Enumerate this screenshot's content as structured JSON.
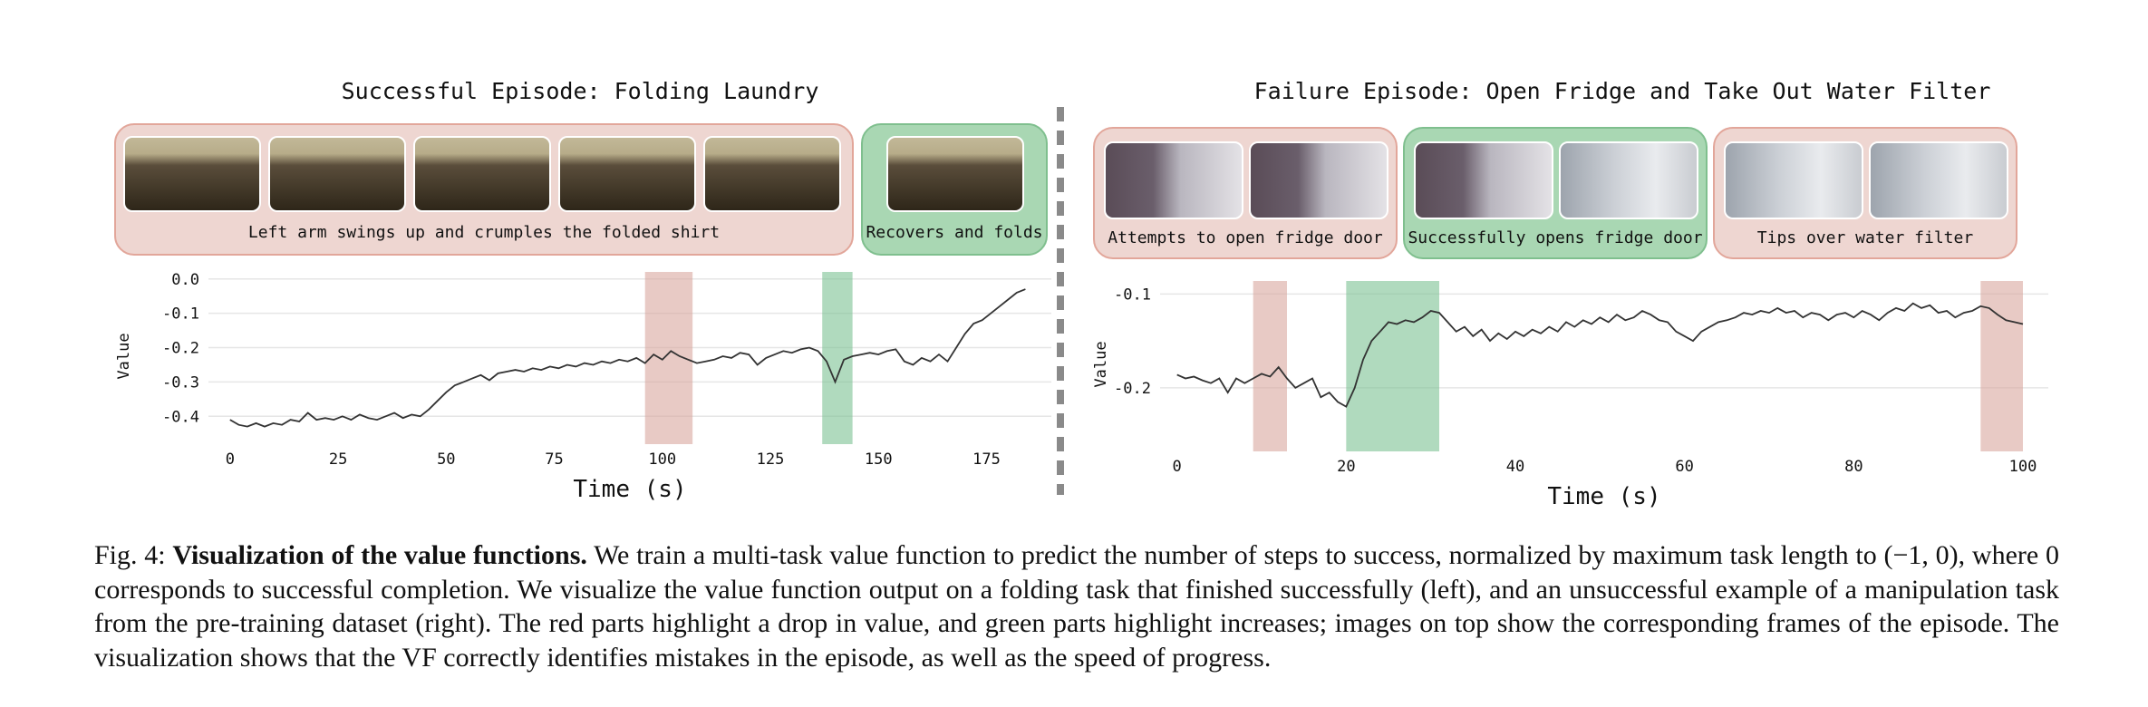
{
  "left_panel": {
    "title": "Successful Episode: Folding Laundry",
    "groups": [
      {
        "caption": "Left arm swings up and crumples the folded shirt",
        "color": "red",
        "frames": 5
      },
      {
        "caption": "Recovers and folds",
        "color": "green",
        "frames": 1
      }
    ]
  },
  "right_panel": {
    "title": "Failure Episode: Open Fridge and Take Out Water Filter",
    "groups": [
      {
        "caption": "Attempts to open fridge door",
        "color": "red",
        "frames": 2
      },
      {
        "caption": "Successfully opens fridge door",
        "color": "green",
        "frames": 2
      },
      {
        "caption": "Tips over water filter",
        "color": "red",
        "frames": 2
      }
    ]
  },
  "colors": {
    "red_band": "#d9a79e",
    "green_band": "#7cc193",
    "line": "#333333"
  },
  "chart_data": [
    {
      "type": "line",
      "xlabel": "Time (s)",
      "ylabel": "Value",
      "xlim": [
        -5,
        190
      ],
      "ylim": [
        -0.46,
        0.01
      ],
      "xticks": [
        0,
        25,
        50,
        75,
        100,
        125,
        150,
        175
      ],
      "yticks": [
        0.0,
        -0.1,
        -0.2,
        -0.3,
        -0.4
      ],
      "ytick_labels": [
        "0.0",
        "-0.1",
        "-0.2",
        "-0.3",
        "-0.4"
      ],
      "grid": "horizontal",
      "bands": [
        {
          "color": "red",
          "x0": 96,
          "x1": 107
        },
        {
          "color": "green",
          "x0": 137,
          "x1": 144
        }
      ],
      "series": [
        {
          "values": [
            [
              0,
              -0.41
            ],
            [
              2,
              -0.425
            ],
            [
              4,
              -0.43
            ],
            [
              6,
              -0.42
            ],
            [
              8,
              -0.43
            ],
            [
              10,
              -0.42
            ],
            [
              12,
              -0.425
            ],
            [
              14,
              -0.41
            ],
            [
              16,
              -0.415
            ],
            [
              18,
              -0.39
            ],
            [
              20,
              -0.41
            ],
            [
              22,
              -0.405
            ],
            [
              24,
              -0.41
            ],
            [
              26,
              -0.4
            ],
            [
              28,
              -0.41
            ],
            [
              30,
              -0.395
            ],
            [
              32,
              -0.405
            ],
            [
              34,
              -0.41
            ],
            [
              36,
              -0.4
            ],
            [
              38,
              -0.39
            ],
            [
              40,
              -0.405
            ],
            [
              42,
              -0.395
            ],
            [
              44,
              -0.4
            ],
            [
              46,
              -0.38
            ],
            [
              48,
              -0.355
            ],
            [
              50,
              -0.33
            ],
            [
              52,
              -0.31
            ],
            [
              54,
              -0.3
            ],
            [
              56,
              -0.29
            ],
            [
              58,
              -0.28
            ],
            [
              60,
              -0.295
            ],
            [
              62,
              -0.275
            ],
            [
              64,
              -0.27
            ],
            [
              66,
              -0.265
            ],
            [
              68,
              -0.27
            ],
            [
              70,
              -0.26
            ],
            [
              72,
              -0.265
            ],
            [
              74,
              -0.255
            ],
            [
              76,
              -0.26
            ],
            [
              78,
              -0.25
            ],
            [
              80,
              -0.255
            ],
            [
              82,
              -0.245
            ],
            [
              84,
              -0.25
            ],
            [
              86,
              -0.24
            ],
            [
              88,
              -0.245
            ],
            [
              90,
              -0.235
            ],
            [
              92,
              -0.24
            ],
            [
              94,
              -0.23
            ],
            [
              96,
              -0.245
            ],
            [
              98,
              -0.22
            ],
            [
              100,
              -0.235
            ],
            [
              102,
              -0.21
            ],
            [
              104,
              -0.225
            ],
            [
              106,
              -0.235
            ],
            [
              108,
              -0.245
            ],
            [
              110,
              -0.24
            ],
            [
              112,
              -0.235
            ],
            [
              114,
              -0.225
            ],
            [
              116,
              -0.23
            ],
            [
              118,
              -0.215
            ],
            [
              120,
              -0.22
            ],
            [
              122,
              -0.25
            ],
            [
              124,
              -0.23
            ],
            [
              126,
              -0.22
            ],
            [
              128,
              -0.21
            ],
            [
              130,
              -0.215
            ],
            [
              132,
              -0.205
            ],
            [
              134,
              -0.2
            ],
            [
              136,
              -0.21
            ],
            [
              138,
              -0.24
            ],
            [
              140,
              -0.3
            ],
            [
              142,
              -0.235
            ],
            [
              144,
              -0.225
            ],
            [
              146,
              -0.22
            ],
            [
              148,
              -0.215
            ],
            [
              150,
              -0.22
            ],
            [
              152,
              -0.21
            ],
            [
              154,
              -0.205
            ],
            [
              156,
              -0.24
            ],
            [
              158,
              -0.25
            ],
            [
              160,
              -0.23
            ],
            [
              162,
              -0.24
            ],
            [
              164,
              -0.22
            ],
            [
              166,
              -0.24
            ],
            [
              168,
              -0.2
            ],
            [
              170,
              -0.16
            ],
            [
              172,
              -0.13
            ],
            [
              174,
              -0.12
            ],
            [
              176,
              -0.1
            ],
            [
              178,
              -0.08
            ],
            [
              180,
              -0.06
            ],
            [
              182,
              -0.04
            ],
            [
              184,
              -0.03
            ]
          ]
        }
      ]
    },
    {
      "type": "line",
      "xlabel": "Time (s)",
      "ylabel": "Value",
      "xlim": [
        -2,
        103
      ],
      "ylim": [
        -0.26,
        -0.09
      ],
      "xticks": [
        0,
        20,
        40,
        60,
        80,
        100
      ],
      "yticks": [
        -0.1,
        -0.2
      ],
      "ytick_labels": [
        "-0.1",
        "-0.2"
      ],
      "grid": "horizontal",
      "bands": [
        {
          "color": "red",
          "x0": 9,
          "x1": 13
        },
        {
          "color": "green",
          "x0": 20,
          "x1": 31
        },
        {
          "color": "red",
          "x0": 95,
          "x1": 100
        }
      ],
      "series": [
        {
          "values": [
            [
              0,
              -0.186
            ],
            [
              1,
              -0.19
            ],
            [
              2,
              -0.188
            ],
            [
              3,
              -0.192
            ],
            [
              4,
              -0.195
            ],
            [
              5,
              -0.19
            ],
            [
              6,
              -0.205
            ],
            [
              7,
              -0.19
            ],
            [
              8,
              -0.195
            ],
            [
              9,
              -0.19
            ],
            [
              10,
              -0.185
            ],
            [
              11,
              -0.188
            ],
            [
              12,
              -0.178
            ],
            [
              13,
              -0.19
            ],
            [
              14,
              -0.2
            ],
            [
              15,
              -0.195
            ],
            [
              16,
              -0.19
            ],
            [
              17,
              -0.21
            ],
            [
              18,
              -0.205
            ],
            [
              19,
              -0.215
            ],
            [
              20,
              -0.22
            ],
            [
              21,
              -0.2
            ],
            [
              22,
              -0.17
            ],
            [
              23,
              -0.15
            ],
            [
              24,
              -0.14
            ],
            [
              25,
              -0.13
            ],
            [
              26,
              -0.132
            ],
            [
              27,
              -0.128
            ],
            [
              28,
              -0.13
            ],
            [
              29,
              -0.125
            ],
            [
              30,
              -0.118
            ],
            [
              31,
              -0.12
            ],
            [
              32,
              -0.13
            ],
            [
              33,
              -0.14
            ],
            [
              34,
              -0.135
            ],
            [
              35,
              -0.145
            ],
            [
              36,
              -0.138
            ],
            [
              37,
              -0.15
            ],
            [
              38,
              -0.142
            ],
            [
              39,
              -0.148
            ],
            [
              40,
              -0.14
            ],
            [
              41,
              -0.145
            ],
            [
              42,
              -0.138
            ],
            [
              43,
              -0.142
            ],
            [
              44,
              -0.135
            ],
            [
              45,
              -0.14
            ],
            [
              46,
              -0.13
            ],
            [
              47,
              -0.135
            ],
            [
              48,
              -0.128
            ],
            [
              49,
              -0.132
            ],
            [
              50,
              -0.125
            ],
            [
              51,
              -0.13
            ],
            [
              52,
              -0.122
            ],
            [
              53,
              -0.128
            ],
            [
              54,
              -0.125
            ],
            [
              55,
              -0.118
            ],
            [
              56,
              -0.122
            ],
            [
              57,
              -0.128
            ],
            [
              58,
              -0.13
            ],
            [
              59,
              -0.14
            ],
            [
              60,
              -0.145
            ],
            [
              61,
              -0.15
            ],
            [
              62,
              -0.14
            ],
            [
              63,
              -0.135
            ],
            [
              64,
              -0.13
            ],
            [
              65,
              -0.128
            ],
            [
              66,
              -0.125
            ],
            [
              67,
              -0.12
            ],
            [
              68,
              -0.122
            ],
            [
              69,
              -0.118
            ],
            [
              70,
              -0.12
            ],
            [
              71,
              -0.115
            ],
            [
              72,
              -0.12
            ],
            [
              73,
              -0.118
            ],
            [
              74,
              -0.125
            ],
            [
              75,
              -0.12
            ],
            [
              76,
              -0.122
            ],
            [
              77,
              -0.128
            ],
            [
              78,
              -0.122
            ],
            [
              79,
              -0.12
            ],
            [
              80,
              -0.125
            ],
            [
              81,
              -0.118
            ],
            [
              82,
              -0.122
            ],
            [
              83,
              -0.128
            ],
            [
              84,
              -0.12
            ],
            [
              85,
              -0.115
            ],
            [
              86,
              -0.118
            ],
            [
              87,
              -0.11
            ],
            [
              88,
              -0.115
            ],
            [
              89,
              -0.112
            ],
            [
              90,
              -0.12
            ],
            [
              91,
              -0.118
            ],
            [
              92,
              -0.125
            ],
            [
              93,
              -0.12
            ],
            [
              94,
              -0.118
            ],
            [
              95,
              -0.113
            ],
            [
              96,
              -0.115
            ],
            [
              97,
              -0.122
            ],
            [
              98,
              -0.128
            ],
            [
              99,
              -0.13
            ],
            [
              100,
              -0.132
            ]
          ]
        }
      ]
    }
  ],
  "figure_caption": {
    "label": "Fig. 4: ",
    "bold": "Visualization of the value functions.",
    "text": " We train a multi-task value function to predict the number of steps to success, normalized by maximum task length to (−1, 0), where 0 corresponds to successful completion. We visualize the value function output on a folding task that finished successfully (left), and an unsuccessful example of a manipulation task from the pre-training dataset (right). The red parts highlight a drop in value, and green parts highlight increases; images on top show the corresponding frames of the episode. The visualization shows that the VF correctly identifies mistakes in the episode, as well as the speed of progress."
  }
}
